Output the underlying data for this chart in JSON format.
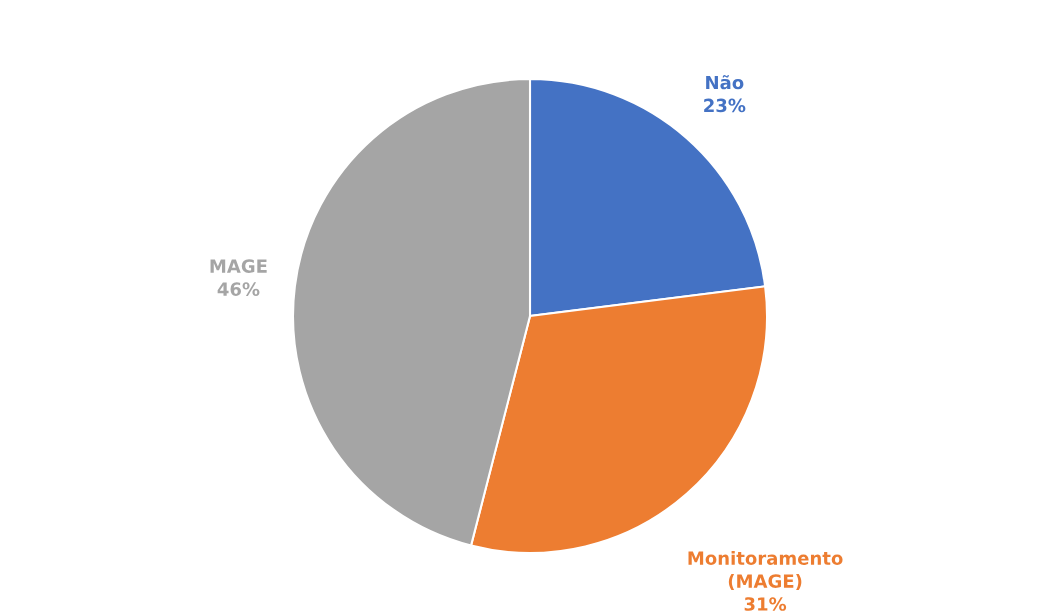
{
  "chart_data": {
    "type": "pie",
    "categories": [
      "Não",
      "Monitoramento (MAGE)",
      "MAGE"
    ],
    "values": [
      23,
      31,
      46
    ],
    "colors": [
      "#4472c4",
      "#ed7d31",
      "#a5a5a5"
    ],
    "value_labels": [
      "23%",
      "31%",
      "46%"
    ]
  }
}
